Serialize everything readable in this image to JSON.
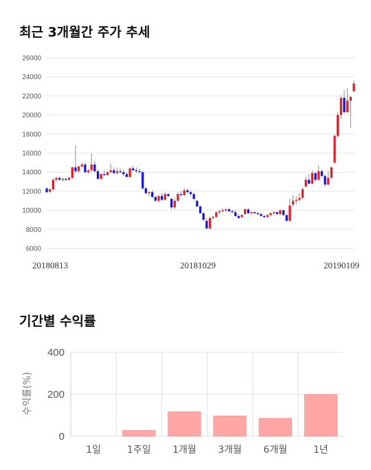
{
  "sections": {
    "price_title": "최근 3개월간 주가 추세",
    "returns_title": "기간별 수익률"
  },
  "chart_data": [
    {
      "type": "candlestick",
      "title": "최근 3개월간 주가 추세",
      "ylim": [
        6000,
        26000
      ],
      "yticks": [
        6000,
        8000,
        10000,
        12000,
        14000,
        16000,
        18000,
        20000,
        22000,
        24000,
        26000
      ],
      "xtick_labels": [
        "20180813",
        "20181029",
        "20190109"
      ],
      "grid": true,
      "colors": {
        "up": "#e0202b",
        "down": "#1a1ac8",
        "wick": "#888888",
        "grid": "#e6e6e6"
      },
      "ohlc": [
        [
          12300,
          12400,
          11800,
          11900
        ],
        [
          11950,
          12300,
          11800,
          12200
        ],
        [
          12200,
          13300,
          12100,
          13200
        ],
        [
          13200,
          13500,
          13000,
          13400
        ],
        [
          13400,
          13500,
          13100,
          13200
        ],
        [
          13200,
          13400,
          13000,
          13300
        ],
        [
          13300,
          13400,
          13100,
          13200
        ],
        [
          13200,
          13500,
          13100,
          13400
        ],
        [
          13400,
          14600,
          13300,
          14500
        ],
        [
          14500,
          16800,
          13900,
          14100
        ],
        [
          14100,
          14700,
          13900,
          14600
        ],
        [
          14600,
          15000,
          14500,
          14800
        ],
        [
          14800,
          15000,
          13900,
          14000
        ],
        [
          14000,
          14300,
          13800,
          14200
        ],
        [
          14200,
          16000,
          14000,
          14800
        ],
        [
          14800,
          15200,
          14000,
          14100
        ],
        [
          14100,
          14300,
          13200,
          13300
        ],
        [
          13300,
          13900,
          13200,
          13800
        ],
        [
          13800,
          14200,
          13600,
          13700
        ],
        [
          13700,
          14100,
          13600,
          14000
        ],
        [
          14000,
          14900,
          13900,
          14200
        ],
        [
          14200,
          14500,
          13800,
          13900
        ],
        [
          13900,
          14400,
          13700,
          14100
        ],
        [
          14100,
          14400,
          13900,
          14000
        ],
        [
          14000,
          14300,
          13600,
          13800
        ],
        [
          13800,
          14000,
          13400,
          13500
        ],
        [
          13500,
          14500,
          13400,
          14400
        ],
        [
          14400,
          14700,
          14100,
          14200
        ],
        [
          14200,
          14500,
          13900,
          14100
        ],
        [
          14100,
          14400,
          13900,
          14000
        ],
        [
          14000,
          14100,
          12200,
          12300
        ],
        [
          12300,
          12500,
          11700,
          11800
        ],
        [
          11800,
          12000,
          11500,
          11900
        ],
        [
          11900,
          12100,
          11300,
          11400
        ],
        [
          11400,
          11500,
          10900,
          11000
        ],
        [
          11000,
          11600,
          10800,
          11500
        ],
        [
          11500,
          11800,
          11000,
          11100
        ],
        [
          11100,
          11900,
          11000,
          11700
        ],
        [
          11700,
          11800,
          11400,
          11500
        ],
        [
          11200,
          11300,
          10100,
          10300
        ],
        [
          10300,
          11300,
          10100,
          11000
        ],
        [
          11000,
          11900,
          10900,
          11700
        ],
        [
          11700,
          12000,
          11500,
          11600
        ],
        [
          11600,
          12300,
          11500,
          12100
        ],
        [
          12100,
          12300,
          11800,
          11900
        ],
        [
          11900,
          12100,
          11500,
          11700
        ],
        [
          11700,
          11900,
          11000,
          11200
        ],
        [
          11000,
          11100,
          10300,
          10400
        ],
        [
          10400,
          10500,
          9600,
          9700
        ],
        [
          9700,
          9800,
          8900,
          9000
        ],
        [
          8900,
          9200,
          8000,
          8100
        ],
        [
          8100,
          9300,
          8000,
          9200
        ],
        [
          9200,
          9400,
          9000,
          9300
        ],
        [
          9300,
          9900,
          9200,
          9800
        ],
        [
          9800,
          10100,
          9600,
          9900
        ],
        [
          9900,
          10200,
          9800,
          10000
        ],
        [
          10000,
          10200,
          9800,
          10100
        ],
        [
          10100,
          10300,
          9800,
          9900
        ],
        [
          9900,
          10100,
          9700,
          9800
        ],
        [
          9800,
          10000,
          9300,
          9400
        ],
        [
          9400,
          9600,
          9100,
          9200
        ],
        [
          9300,
          9600,
          9100,
          9500
        ],
        [
          9600,
          10200,
          9500,
          10100
        ],
        [
          10100,
          10200,
          9600,
          9700
        ],
        [
          9700,
          9900,
          9500,
          9800
        ],
        [
          9800,
          9900,
          9600,
          9700
        ],
        [
          9700,
          9800,
          9500,
          9600
        ],
        [
          9600,
          9800,
          9300,
          9400
        ],
        [
          9400,
          9500,
          9200,
          9300
        ],
        [
          9300,
          9600,
          9200,
          9500
        ],
        [
          9500,
          9800,
          9400,
          9700
        ],
        [
          9700,
          9900,
          9500,
          9800
        ],
        [
          9800,
          9900,
          9500,
          9600
        ],
        [
          9600,
          10100,
          9500,
          10000
        ],
        [
          10000,
          10100,
          9400,
          9500
        ],
        [
          9500,
          9600,
          8800,
          8900
        ],
        [
          8900,
          11200,
          8800,
          10500
        ],
        [
          10600,
          11600,
          10400,
          11000
        ],
        [
          11000,
          11500,
          10600,
          11100
        ],
        [
          11100,
          11800,
          10900,
          11300
        ],
        [
          11300,
          12400,
          11200,
          12200
        ],
        [
          12500,
          13500,
          12400,
          13200
        ],
        [
          13200,
          13800,
          12700,
          12800
        ],
        [
          12800,
          14200,
          12700,
          13900
        ],
        [
          13900,
          14000,
          13000,
          13200
        ],
        [
          13200,
          14700,
          13100,
          14100
        ],
        [
          14100,
          14300,
          13500,
          13600
        ],
        [
          13600,
          13800,
          12500,
          12700
        ],
        [
          12700,
          14100,
          12600,
          13400
        ],
        [
          13400,
          14600,
          13300,
          14500
        ],
        [
          15000,
          18000,
          14900,
          17800
        ],
        [
          17800,
          20300,
          17600,
          20000
        ],
        [
          20000,
          22000,
          19600,
          21800
        ],
        [
          21800,
          22600,
          20100,
          20300
        ],
        [
          20300,
          22800,
          20200,
          21500
        ],
        [
          21500,
          22000,
          18600,
          21900
        ],
        [
          22500,
          23600,
          22400,
          23300
        ]
      ]
    },
    {
      "type": "bar",
      "title": "기간별 수익률",
      "ylabel": "수익률(%)",
      "categories": [
        "1일",
        "1주일",
        "1개월",
        "3개월",
        "6개월",
        "1년"
      ],
      "values": [
        0,
        28,
        117,
        97,
        86,
        200
      ],
      "ylim": [
        0,
        400
      ],
      "yticks": [
        0,
        200,
        400
      ],
      "colors": {
        "bar": "#ffa6a6",
        "bar_edge": "#e88b8b",
        "grid": "#e0e0e0"
      }
    }
  ]
}
